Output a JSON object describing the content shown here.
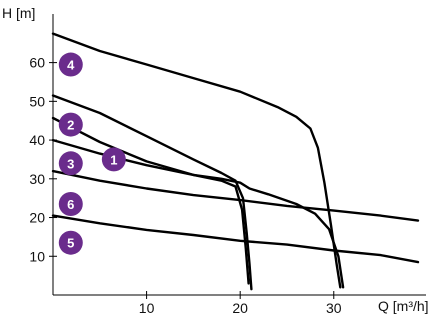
{
  "chart_data": {
    "type": "line",
    "xlabel": "Q [m³/h]",
    "ylabel": "H [m]",
    "xlim": [
      0,
      39
    ],
    "ylim": [
      0,
      71
    ],
    "x_ticks": [
      10,
      20,
      30
    ],
    "y_ticks": [
      10,
      20,
      30,
      40,
      50,
      60
    ],
    "grid": false,
    "colors": {
      "line": "#000000",
      "badge": "#6a2c8c",
      "badge_text": "#ffffff"
    },
    "series": [
      {
        "name": "1",
        "points": [
          [
            0,
            45.7
          ],
          [
            5,
            39.5
          ],
          [
            10,
            34.5
          ],
          [
            15,
            31.0
          ],
          [
            18,
            30.0
          ],
          [
            20,
            29.0
          ],
          [
            21,
            27.5
          ],
          [
            23,
            26.0
          ],
          [
            26,
            23.5
          ],
          [
            28,
            21.0
          ],
          [
            29.5,
            17.0
          ],
          [
            30.5,
            10.0
          ],
          [
            31,
            2.0
          ]
        ]
      },
      {
        "name": "2",
        "points": [
          [
            0,
            51.5
          ],
          [
            5,
            47.0
          ],
          [
            10,
            41.0
          ],
          [
            15,
            35.0
          ],
          [
            18,
            31.5
          ],
          [
            19.5,
            29.5
          ],
          [
            20.3,
            25.0
          ],
          [
            20.7,
            16.0
          ],
          [
            21,
            8.0
          ],
          [
            21.2,
            1.5
          ]
        ]
      },
      {
        "name": "3",
        "points": [
          [
            0,
            40.0
          ],
          [
            5,
            36.5
          ],
          [
            10,
            33.5
          ],
          [
            15,
            31.0
          ],
          [
            18,
            29.5
          ],
          [
            19.5,
            28.0
          ],
          [
            20.2,
            22.0
          ],
          [
            20.6,
            12.0
          ],
          [
            20.9,
            3.0
          ]
        ]
      },
      {
        "name": "4",
        "points": [
          [
            0,
            67.5
          ],
          [
            5,
            63.0
          ],
          [
            10,
            59.5
          ],
          [
            15,
            56.0
          ],
          [
            20,
            52.5
          ],
          [
            24,
            48.5
          ],
          [
            26,
            46.0
          ],
          [
            27.5,
            43.0
          ],
          [
            28.3,
            38.0
          ],
          [
            29,
            29.0
          ],
          [
            29.7,
            18.0
          ],
          [
            30.3,
            8.0
          ],
          [
            30.7,
            2.0
          ]
        ]
      },
      {
        "name": "5",
        "points": [
          [
            0,
            20.5
          ],
          [
            5,
            18.5
          ],
          [
            10,
            16.8
          ],
          [
            15,
            15.5
          ],
          [
            20,
            14.0
          ],
          [
            25,
            13.0
          ],
          [
            30,
            11.5
          ],
          [
            35,
            10.3
          ],
          [
            39,
            8.5
          ]
        ]
      },
      {
        "name": "6",
        "points": [
          [
            0,
            32.0
          ],
          [
            5,
            29.5
          ],
          [
            10,
            27.5
          ],
          [
            15,
            25.8
          ],
          [
            20,
            24.5
          ],
          [
            25,
            23.0
          ],
          [
            30,
            21.8
          ],
          [
            35,
            20.5
          ],
          [
            39,
            19.2
          ]
        ]
      }
    ],
    "annotations": [
      {
        "text": "4",
        "x": 1.9,
        "y": 59.5
      },
      {
        "text": "2",
        "x": 1.9,
        "y": 44.0
      },
      {
        "text": "3",
        "x": 1.9,
        "y": 34.0
      },
      {
        "text": "1",
        "x": 6.5,
        "y": 35.0
      },
      {
        "text": "6",
        "x": 1.9,
        "y": 23.5
      },
      {
        "text": "5",
        "x": 1.9,
        "y": 13.5
      }
    ]
  }
}
